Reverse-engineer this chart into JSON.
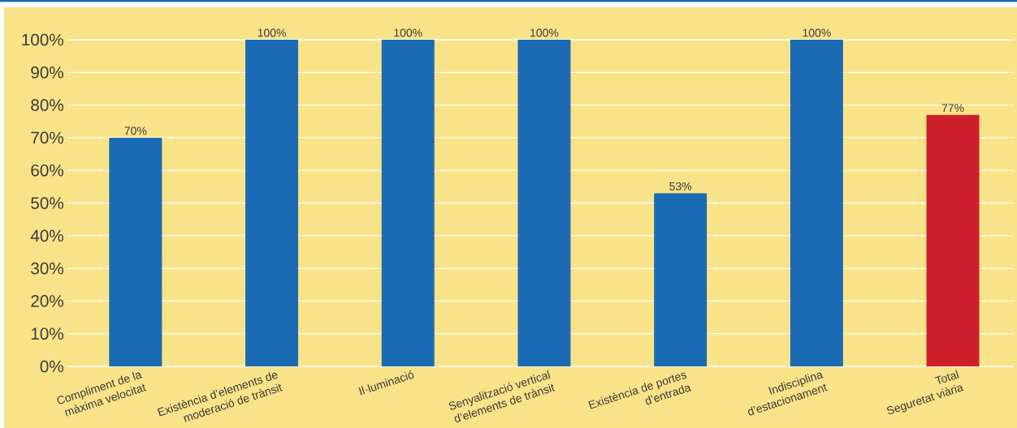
{
  "chart_data": {
    "type": "bar",
    "categories": [
      "Compliment de la\nmàxima velocitat",
      "Existència d’elements de\nmoderació de trànsit",
      "Il·luminació",
      "Senyalització vertical\nd’elements de trànsit",
      "Existència de portes\nd’entrada",
      "Indisciplina\nd’estacionament",
      "Total\nSeguretat viària"
    ],
    "values": [
      70,
      100,
      100,
      100,
      53,
      100,
      77
    ],
    "colors": [
      "#1a6bb4",
      "#1a6bb4",
      "#1a6bb4",
      "#1a6bb4",
      "#1a6bb4",
      "#1a6bb4",
      "#ce1f2d"
    ],
    "value_labels": [
      "70%",
      "100%",
      "100%",
      "100%",
      "53%",
      "100%",
      "77%"
    ],
    "ylim": [
      0,
      100
    ],
    "yticks": [
      {
        "value": 0,
        "label": "0%"
      },
      {
        "value": 10,
        "label": "10%"
      },
      {
        "value": 20,
        "label": "20%"
      },
      {
        "value": 30,
        "label": "30%"
      },
      {
        "value": 40,
        "label": "40%"
      },
      {
        "value": 50,
        "label": "50%"
      },
      {
        "value": 60,
        "label": "60%"
      },
      {
        "value": 70,
        "label": "70%"
      },
      {
        "value": 80,
        "label": "80%"
      },
      {
        "value": 90,
        "label": "90%"
      },
      {
        "value": 100,
        "label": "100%"
      }
    ],
    "grid": "y"
  }
}
